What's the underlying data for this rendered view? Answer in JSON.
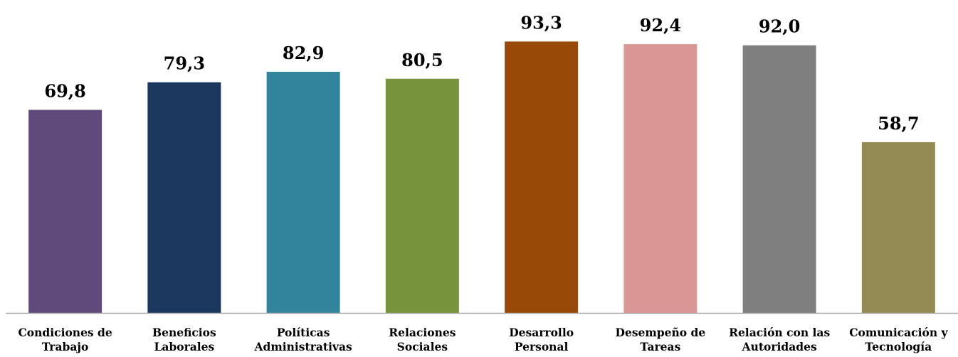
{
  "chart_data": {
    "type": "bar",
    "categories": [
      [
        "Condiciones de",
        "Trabajo"
      ],
      [
        "Beneficios",
        "Laborales"
      ],
      [
        "Políticas",
        "Administrativas"
      ],
      [
        "Relaciones",
        "Sociales"
      ],
      [
        "Desarrollo",
        "Personal"
      ],
      [
        "Desempeño de",
        "Tareas"
      ],
      [
        "Relación con las",
        "Autoridades"
      ],
      [
        "Comunicación y",
        "Tecnología"
      ]
    ],
    "values": [
      69.8,
      79.3,
      82.9,
      80.5,
      93.3,
      92.4,
      92.0,
      58.7
    ],
    "data_labels": [
      "69,8",
      "79,3",
      "82,9",
      "80,5",
      "93,3",
      "92,4",
      "92,0",
      "58,7"
    ],
    "colors": [
      "#604a7b",
      "#1b375d",
      "#31849b",
      "#77933c",
      "#984807",
      "#d99694",
      "#7f7f7f",
      "#948a54"
    ],
    "ylim": [
      0,
      100
    ],
    "grid": false,
    "legend": "none"
  }
}
